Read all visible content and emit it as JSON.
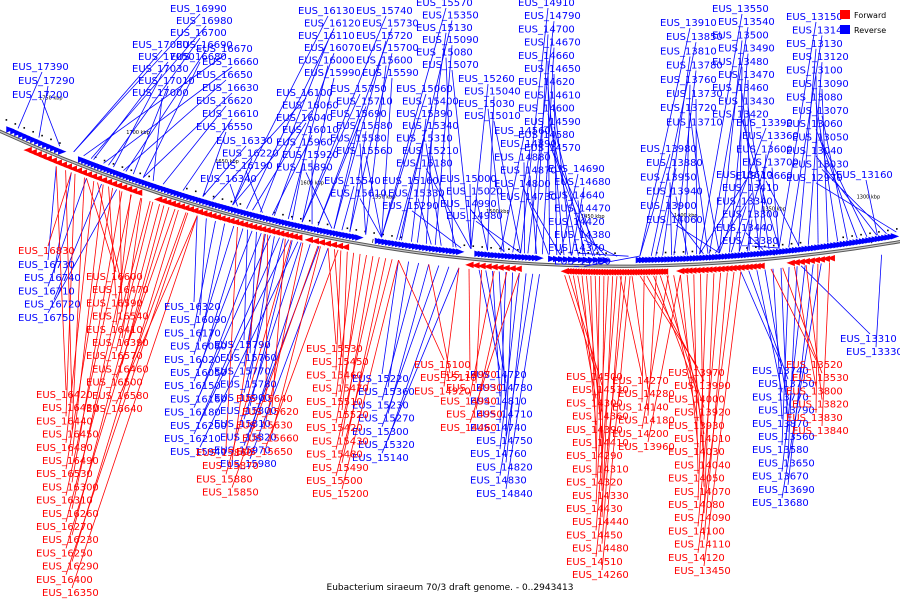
{
  "caption": "Eubacterium siraeum 70/3 draft genome. - 0..2943413",
  "legend": [
    {
      "label": "Forward",
      "color": "#ff0000"
    },
    {
      "label": "Reverse",
      "color": "#0000ff"
    }
  ],
  "strand_colors": {
    "forward": "#ff0000",
    "reverse": "#0000ff"
  },
  "scale_labels": [
    "1750 kbp",
    "1700 kbp",
    "1650 kbp",
    "1600 kbp",
    "1550 kbp",
    "1500 kbp",
    "1450 kbp",
    "1400 kbp",
    "1350 kbp",
    "1300 kbp"
  ],
  "reverse_labels": [
    "EUS_17390",
    "EUS_17290",
    "EUS_17200",
    "EUS_16990",
    "EUS_16980",
    "EUS_16700",
    "EUS_16690",
    "EUS_16680",
    "EUS_17080",
    "EUS_17050",
    "EUS_17030",
    "EUS_17010",
    "EUS_17000",
    "EUS_16670",
    "EUS_16660",
    "EUS_16650",
    "EUS_16630",
    "EUS_16620",
    "EUS_16610",
    "EUS_16550",
    "EUS_16130",
    "EUS_16120",
    "EUS_16110",
    "EUS_16070",
    "EUS_16000",
    "EUS_15990",
    "EUS_16100",
    "EUS_16060",
    "EUS_16040",
    "EUS_16010",
    "EUS_15960",
    "EUS_15920",
    "EUS_15890",
    "EUS_16330",
    "EUS_16220",
    "EUS_16190",
    "EUS_16340",
    "EUS_15740",
    "EUS_15730",
    "EUS_15720",
    "EUS_15700",
    "EUS_15600",
    "EUS_15590",
    "EUS_15750",
    "EUS_15710",
    "EUS_15690",
    "EUS_15680",
    "EUS_15580",
    "EUS_15560",
    "EUS_15540",
    "EUS_15610",
    "EUS_15570",
    "EUS_15350",
    "EUS_15130",
    "EUS_15090",
    "EUS_15080",
    "EUS_15070",
    "EUS_15060",
    "EUS_15400",
    "EUS_15390",
    "EUS_15340",
    "EUS_15310",
    "EUS_15210",
    "EUS_15180",
    "EUS_15160",
    "EUS_15330",
    "EUS_15290",
    "EUS_15260",
    "EUS_15040",
    "EUS_15030",
    "EUS_15010",
    "EUS_15000",
    "EUS_15020",
    "EUS_14990",
    "EUS_14980",
    "EUS_14910",
    "EUS_14790",
    "EUS_14700",
    "EUS_14670",
    "EUS_14660",
    "EUS_14650",
    "EUS_14620",
    "EUS_14610",
    "EUS_14600",
    "EUS_14590",
    "EUS_14580",
    "EUS_14570",
    "EUS_14560",
    "EUS_14890",
    "EUS_14880",
    "EUS_14870",
    "EUS_14800",
    "EUS_14730",
    "EUS_14690",
    "EUS_14680",
    "EUS_14640",
    "EUS_14470",
    "EUS_14420",
    "EUS_14380",
    "EUS_14370",
    "EUS_14350",
    "EUS_13910",
    "EUS_13850",
    "EUS_13810",
    "EUS_13780",
    "EUS_13760",
    "EUS_13730",
    "EUS_13720",
    "EUS_13710",
    "EUS_13980",
    "EUS_13880",
    "EUS_13950",
    "EUS_13940",
    "EUS_13900",
    "EUS_14060",
    "EUS_13550",
    "EUS_13540",
    "EUS_13500",
    "EUS_13490",
    "EUS_13480",
    "EUS_13470",
    "EUS_13460",
    "EUS_13430",
    "EUS_13420",
    "EUS_13390",
    "EUS_13360",
    "EUS_13600",
    "EUS_13700",
    "EUS_13660",
    "EUS_13610",
    "EUS_13410",
    "EUS_13340",
    "EUS_13300",
    "EUS_13440",
    "EUS_13380",
    "EUS_13150",
    "EUS_13140",
    "EUS_13130",
    "EUS_13120",
    "EUS_13100",
    "EUS_13090",
    "EUS_13080",
    "EUS_13070",
    "EUS_13060",
    "EUS_13050",
    "EUS_13040",
    "EUS_13030",
    "EUS_12970",
    "EUS_13160",
    "EUS_16730",
    "EUS_16740",
    "EUS_16710",
    "EUS_16720",
    "EUS_16750",
    "EUS_16320",
    "EUS_16090",
    "EUS_16170",
    "EUS_16080",
    "EUS_16020",
    "EUS_16050",
    "EUS_16150",
    "EUS_16160",
    "EUS_16180",
    "EUS_16200",
    "EUS_16210",
    "EUS_15940",
    "EUS_15790",
    "EUS_15760",
    "EUS_15770",
    "EUS_15780",
    "EUS_15900",
    "EUS_15800",
    "EUS_15810",
    "EUS_15820",
    "EUS_15970",
    "EUS_15980",
    "EUS_15220",
    "EUS_15360",
    "EUS_15230",
    "EUS_15270",
    "EUS_15300",
    "EUS_15320",
    "EUS_15140",
    "EUS_14720",
    "EUS_14780",
    "EUS_14810",
    "EUS_14710",
    "EUS_14740",
    "EUS_14750",
    "EUS_14760",
    "EUS_14820",
    "EUS_14830",
    "EUS_14840",
    "EUS_13310",
    "EUS_13330",
    "EUS_13740",
    "EUS_13750",
    "EUS_13770",
    "EUS_13790",
    "EUS_13870",
    "EUS_13560",
    "EUS_13580",
    "EUS_13650",
    "EUS_13670",
    "EUS_13690",
    "EUS_13680"
  ],
  "forward_labels": [
    "EUS_16830",
    "EUS_16600",
    "EUS_16470",
    "EUS_16590",
    "EUS_16540",
    "EUS_16410",
    "EUS_16390",
    "EUS_16570",
    "EUS_16460",
    "EUS_16500",
    "EUS_16580",
    "EUS_16640",
    "EUS_16420",
    "EUS_16430",
    "EUS_16440",
    "EUS_16450",
    "EUS_16480",
    "EUS_16490",
    "EUS_16530",
    "EUS_16300",
    "EUS_16310",
    "EUS_16260",
    "EUS_16270",
    "EUS_16230",
    "EUS_16250",
    "EUS_16290",
    "EUS_16400",
    "EUS_16350",
    "EUS_15640",
    "EUS_15620",
    "EUS_15630",
    "EUS_15660",
    "EUS_15650",
    "EUS_15860",
    "EUS_15870",
    "EUS_15880",
    "EUS_15850",
    "EUS_15530",
    "EUS_15450",
    "EUS_15460",
    "EUS_15470",
    "EUS_15510",
    "EUS_15520",
    "EUS_15420",
    "EUS_15430",
    "EUS_15480",
    "EUS_15490",
    "EUS_15500",
    "EUS_15200",
    "EUS_15100",
    "EUS_15110",
    "EUS_14920",
    "EUS_14970",
    "EUS_14930",
    "EUS_14940",
    "EUS_14950",
    "EUS_14460",
    "EUS_14500",
    "EUS_14530",
    "EUS_14300",
    "EUS_14360",
    "EUS_14390",
    "EUS_14410",
    "EUS_14290",
    "EUS_14310",
    "EUS_14320",
    "EUS_14330",
    "EUS_14430",
    "EUS_14440",
    "EUS_14450",
    "EUS_14480",
    "EUS_14510",
    "EUS_14260",
    "EUS_14270",
    "EUS_14280",
    "EUS_14140",
    "EUS_14180",
    "EUS_14200",
    "EUS_13960",
    "EUS_13970",
    "EUS_13990",
    "EUS_14000",
    "EUS_13920",
    "EUS_13930",
    "EUS_14010",
    "EUS_14030",
    "EUS_14040",
    "EUS_14050",
    "EUS_14070",
    "EUS_14080",
    "EUS_14090",
    "EUS_14100",
    "EUS_14110",
    "EUS_14120",
    "EUS_13450",
    "EUS_13520",
    "EUS_13530",
    "EUS_13800",
    "EUS_13820",
    "EUS_13830",
    "EUS_13840"
  ]
}
